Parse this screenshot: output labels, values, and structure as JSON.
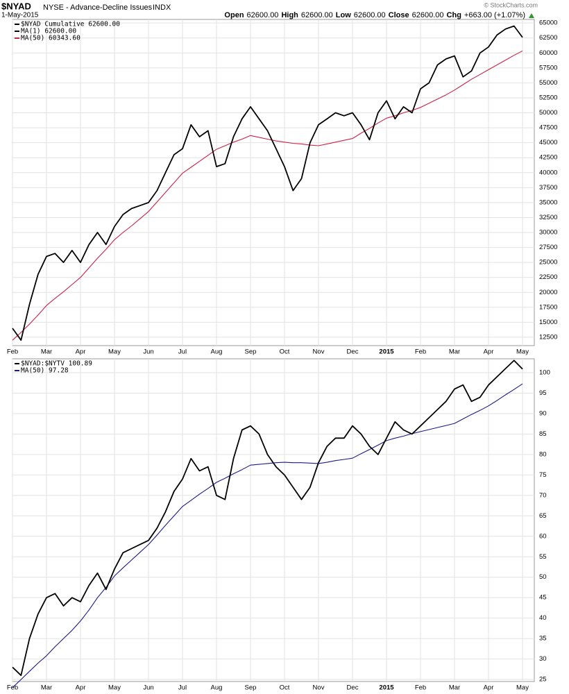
{
  "chart_data": [
    {
      "type": "line",
      "title": "$NYAD",
      "subtitle": "NYSE - Advance-Decline Issues",
      "exchange": "INDX",
      "date": "1-May-2015",
      "quote": [
        {
          "label": "Open",
          "value": "62600.00"
        },
        {
          "label": "High",
          "value": "62600.00"
        },
        {
          "label": "Low",
          "value": "62600.00"
        },
        {
          "label": "Close",
          "value": "62600.00"
        }
      ],
      "change_label": "Chg",
      "change": "+663.00 (+1.07%)",
      "credit": "© StockCharts.com",
      "categories": [
        "Feb",
        null,
        null,
        null,
        "Mar",
        null,
        null,
        null,
        "Apr",
        null,
        null,
        null,
        "May",
        null,
        null,
        null,
        "Jun",
        null,
        null,
        null,
        "Jul",
        null,
        null,
        null,
        "Aug",
        null,
        null,
        null,
        "Sep",
        null,
        null,
        null,
        "Oct",
        null,
        null,
        null,
        "Nov",
        null,
        null,
        null,
        "Dec",
        null,
        null,
        null,
        "2015",
        null,
        null,
        null,
        "Feb",
        null,
        null,
        null,
        "Mar",
        null,
        null,
        null,
        "Apr",
        null,
        null,
        null,
        "May"
      ],
      "series": [
        {
          "name": "$NYAD Cumulative 62600.00",
          "color": "#000000",
          "values": [
            14000,
            12000,
            18000,
            23000,
            26000,
            26500,
            25000,
            27000,
            25000,
            28000,
            30000,
            28000,
            31000,
            33000,
            34000,
            34500,
            35000,
            37000,
            40000,
            43000,
            44000,
            48000,
            46000,
            47000,
            41000,
            41500,
            46000,
            49000,
            51000,
            49000,
            47000,
            44000,
            41000,
            37000,
            39000,
            45000,
            48000,
            49000,
            50000,
            49500,
            50000,
            48000,
            45500,
            50000,
            52000,
            49000,
            51000,
            50000,
            54000,
            55000,
            58000,
            59000,
            59500,
            56000,
            57000,
            60000,
            61000,
            63000,
            64000,
            64500,
            62600
          ]
        },
        {
          "name": "MA(50) 60343.60",
          "color": "#cc2244",
          "values": [
            12000,
            13300,
            14700,
            16200,
            17800,
            19000,
            20100,
            21300,
            22500,
            24100,
            25700,
            27200,
            28800,
            30000,
            31100,
            32300,
            33500,
            35100,
            36700,
            38300,
            39900,
            40900,
            41900,
            42900,
            43900,
            44500,
            45100,
            45600,
            46200,
            45900,
            45600,
            45300,
            45100,
            44900,
            44800,
            44600,
            44500,
            44800,
            45100,
            45400,
            45700,
            46600,
            47400,
            48300,
            49100,
            49500,
            50000,
            50400,
            50900,
            51600,
            52300,
            53000,
            53800,
            54700,
            55600,
            56400,
            57200,
            58000,
            58800,
            59600,
            60343.6
          ]
        }
      ],
      "legend_extra": [
        "MA(1) 62600.00"
      ],
      "ylim": [
        11100,
        65600
      ],
      "yticks": [
        12500,
        15000,
        17500,
        20000,
        22500,
        25000,
        27500,
        30000,
        32500,
        35000,
        37500,
        40000,
        42500,
        45000,
        47500,
        50000,
        52500,
        55000,
        57500,
        60000,
        62500,
        65000
      ],
      "grid": true
    },
    {
      "type": "line",
      "categories": [
        "Feb",
        null,
        null,
        null,
        "Mar",
        null,
        null,
        null,
        "Apr",
        null,
        null,
        null,
        "May",
        null,
        null,
        null,
        "Jun",
        null,
        null,
        null,
        "Jul",
        null,
        null,
        null,
        "Aug",
        null,
        null,
        null,
        "Sep",
        null,
        null,
        null,
        "Oct",
        null,
        null,
        null,
        "Nov",
        null,
        null,
        null,
        "Dec",
        null,
        null,
        null,
        "2015",
        null,
        null,
        null,
        "Feb",
        null,
        null,
        null,
        "Mar",
        null,
        null,
        null,
        "Apr",
        null,
        null,
        null,
        "May"
      ],
      "series": [
        {
          "name": "$NYAD:$NYTV 100.89",
          "color": "#000000",
          "values": [
            28,
            26,
            35,
            41,
            45,
            46,
            43,
            45,
            44,
            48,
            51,
            47,
            52,
            56,
            57,
            58,
            59,
            62,
            66,
            71,
            74,
            79,
            76,
            77,
            70,
            69,
            79,
            86,
            87,
            85,
            80,
            77,
            75,
            72,
            69,
            72,
            78,
            82,
            84,
            84,
            87,
            85,
            82,
            80,
            84,
            88,
            86,
            85,
            87,
            89,
            91,
            93,
            96,
            97,
            93,
            94,
            97,
            99,
            101,
            103,
            100.89
          ]
        },
        {
          "name": "MA(50) 97.28",
          "color": "#1a1a8c",
          "values": [
            23,
            25,
            27,
            29,
            30.8,
            33,
            35,
            37,
            39.3,
            42,
            45,
            47.5,
            50.3,
            52.3,
            54.2,
            56.1,
            58,
            60.3,
            62.7,
            65,
            67.3,
            68.8,
            70.3,
            71.7,
            73.2,
            74.2,
            75.3,
            76.3,
            77.4,
            77.6,
            77.8,
            78,
            78.1,
            78,
            78,
            77.9,
            77.8,
            78.1,
            78.5,
            78.8,
            79.1,
            80.2,
            81.2,
            82.3,
            83.4,
            84,
            84.5,
            85.1,
            85.6,
            86.1,
            86.6,
            87.1,
            87.6,
            88.7,
            89.8,
            90.8,
            91.9,
            93.2,
            94.6,
            95.9,
            97.28
          ]
        }
      ],
      "ylim": [
        24.5,
        103.4
      ],
      "yticks": [
        25,
        30,
        35,
        40,
        45,
        50,
        55,
        60,
        65,
        70,
        75,
        80,
        85,
        90,
        95,
        100
      ],
      "grid": true
    }
  ]
}
